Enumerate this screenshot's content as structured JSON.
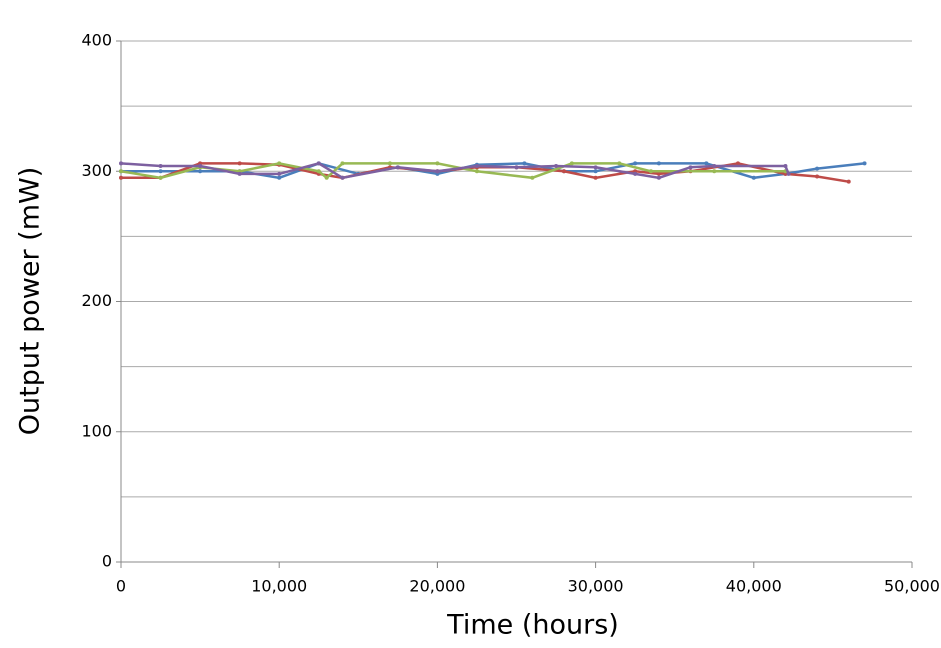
{
  "chart_data": {
    "type": "line",
    "xlabel": "Time (hours)",
    "ylabel": "Output power (mW)",
    "xlim": [
      0,
      50000
    ],
    "xticks": [
      0,
      {
        "value": 10000,
        "label": "10,000"
      },
      {
        "value": 20000,
        "label": "20,000"
      },
      {
        "value": 30000,
        "label": "30,000"
      },
      {
        "value": 40000,
        "label": "40,000"
      },
      {
        "value": 50000,
        "label": "50,000"
      }
    ],
    "ylim": [
      0,
      400
    ],
    "yticks": [
      0,
      100,
      200,
      300,
      400
    ],
    "y_minor_ticks": [
      50,
      150,
      250,
      350
    ],
    "grid": true,
    "series": [
      {
        "color": "#4a7ebb",
        "x": [
          0,
          2500,
          5000,
          7500,
          10000,
          12500,
          15000,
          17500,
          20000,
          22500,
          25500,
          28000,
          30000,
          32500,
          34000,
          37000,
          40000,
          42000,
          44000,
          47000
        ],
        "values": [
          300,
          300,
          300,
          300,
          295,
          306,
          298,
          303,
          298,
          305,
          306,
          300,
          300,
          306,
          306,
          306,
          295,
          298,
          302,
          306
        ]
      },
      {
        "color": "#be4b48",
        "x": [
          0,
          2500,
          5000,
          7500,
          10000,
          12500,
          14000,
          17000,
          20000,
          22500,
          25000,
          28000,
          30000,
          32500,
          34000,
          36000,
          39000,
          42000,
          44000,
          46000
        ],
        "values": [
          295,
          295,
          306,
          306,
          305,
          298,
          295,
          303,
          300,
          303,
          303,
          300,
          295,
          300,
          298,
          300,
          306,
          298,
          296,
          292
        ]
      },
      {
        "color": "#98b954",
        "x": [
          0,
          2500,
          5000,
          7500,
          10000,
          12500,
          13000,
          14000,
          17000,
          20000,
          22500,
          26000,
          28500,
          31500,
          33500,
          37500,
          42000
        ],
        "values": [
          300,
          295,
          303,
          300,
          306,
          300,
          295,
          306,
          306,
          306,
          300,
          295,
          306,
          306,
          300,
          300,
          300
        ]
      },
      {
        "color": "#7d60a0",
        "x": [
          0,
          2500,
          5000,
          7500,
          10000,
          12500,
          14000,
          17500,
          20000,
          22500,
          25000,
          27500,
          30000,
          32500,
          34000,
          36000,
          37500,
          42000,
          42200
        ],
        "values": [
          306,
          304,
          304,
          298,
          298,
          306,
          295,
          303,
          300,
          304,
          303,
          304,
          303,
          298,
          295,
          303,
          304,
          304,
          298
        ]
      }
    ]
  }
}
